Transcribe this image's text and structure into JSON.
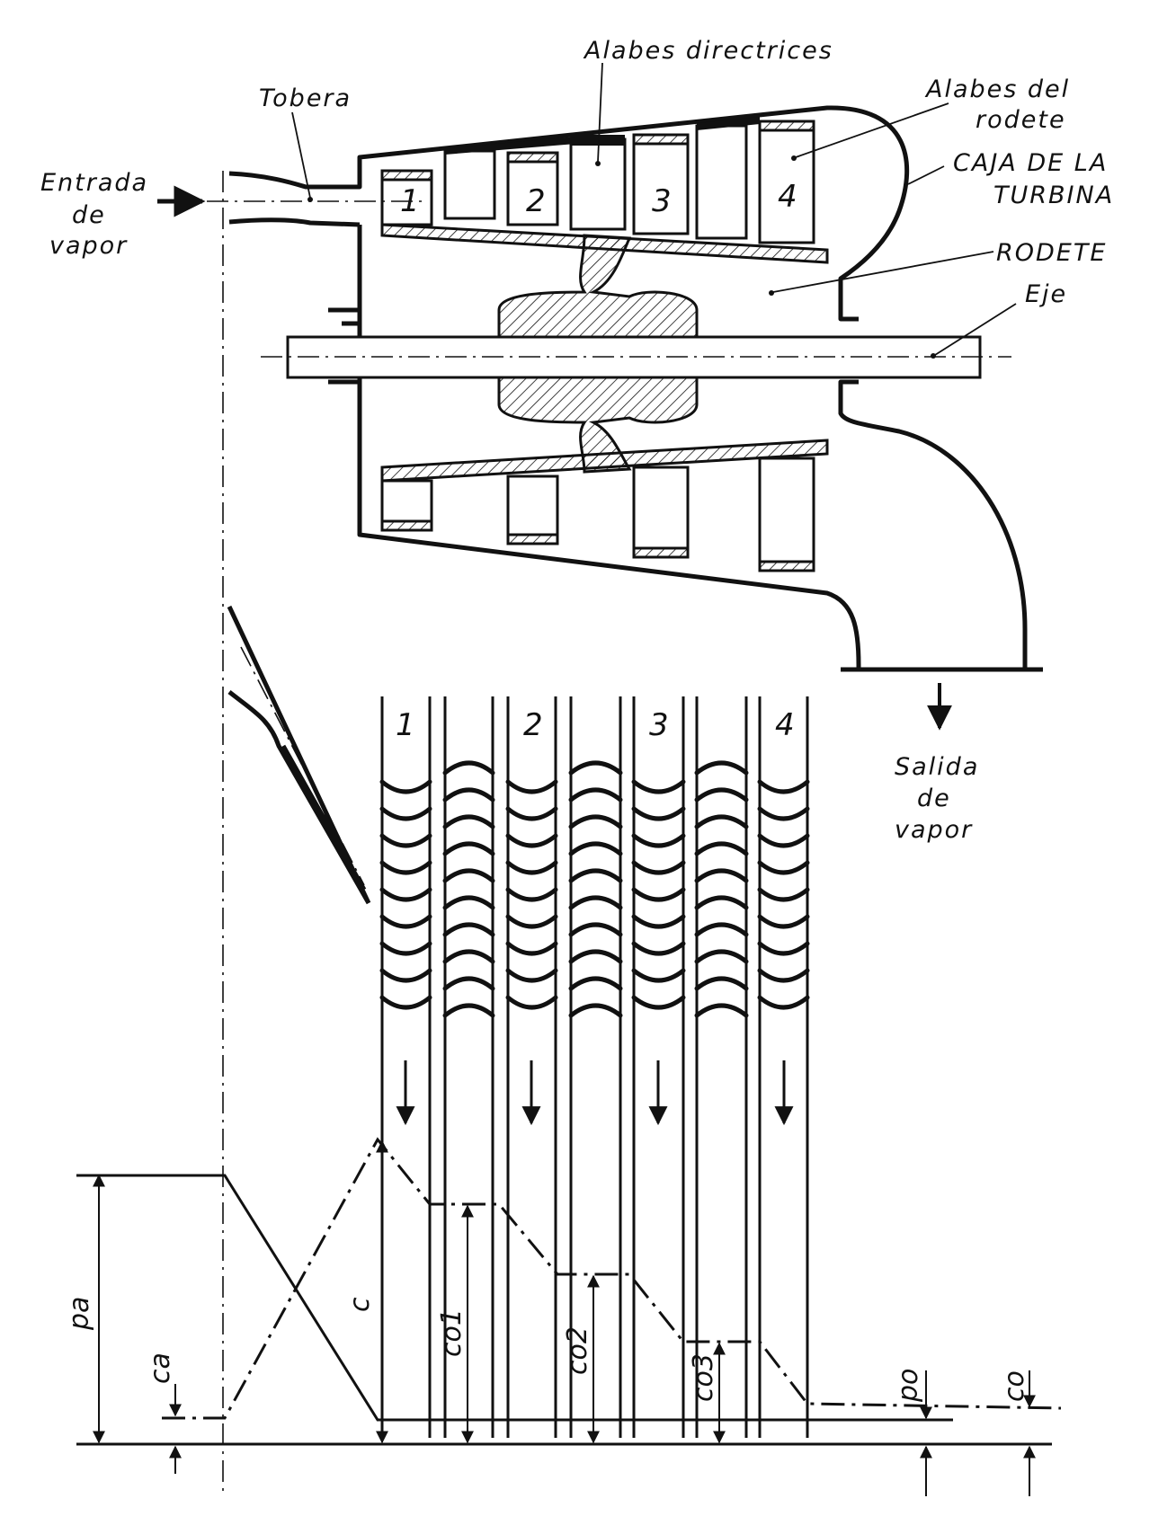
{
  "labels": {
    "inlet_line1": "Entrada",
    "inlet_line2": "de",
    "inlet_line3": "vapor",
    "nozzle": "Tobera",
    "guide_vanes": "Alabes directrices",
    "rotor_blades_line1": "Alabes del",
    "rotor_blades_line2": "rodete",
    "casing_line1": "CAJA DE LA",
    "casing_line2": "TURBINA",
    "rotor": "RODETE",
    "shaft": "Eje",
    "outlet_line1": "Salida",
    "outlet_line2": "de",
    "outlet_line3": "vapor"
  },
  "stages": [
    "1",
    "2",
    "3",
    "4"
  ],
  "graph": {
    "pressure_inlet": "pa",
    "inlet_velocity": "ca",
    "nozzle_velocity": "c",
    "velocity_1": "co1",
    "velocity_2": "co2",
    "velocity_3": "co3",
    "pressure_outlet": "po",
    "outlet_velocity": "co"
  }
}
